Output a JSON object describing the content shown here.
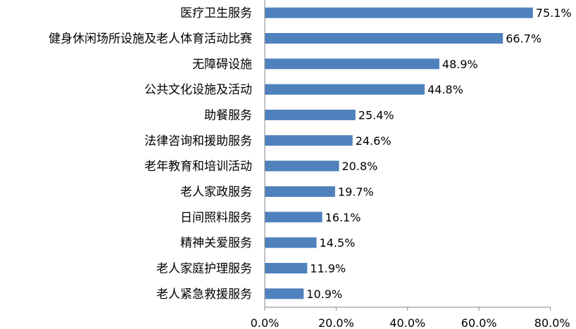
{
  "chart_data": {
    "type": "bar",
    "orientation": "horizontal",
    "categories": [
      "医疗卫生服务",
      "健身休闲场所设施及老人体育活动比赛",
      "无障碍设施",
      "公共文化设施及活动",
      "助餐服务",
      "法律咨询和援助服务",
      "老年教育和培训活动",
      "老人家政服务",
      "日间照料服务",
      "精神关爱服务",
      "老人家庭护理服务",
      "老人紧急救援服务"
    ],
    "values": [
      75.1,
      66.7,
      48.9,
      44.8,
      25.4,
      24.6,
      20.8,
      19.7,
      16.1,
      14.5,
      11.9,
      10.9
    ],
    "value_labels": [
      "75.1%",
      "66.7%",
      "48.9%",
      "44.8%",
      "25.4%",
      "24.6%",
      "20.8%",
      "19.7%",
      "16.1%",
      "14.5%",
      "11.9%",
      "10.9%"
    ],
    "xlim": [
      0,
      80
    ],
    "x_ticks": [
      0,
      20,
      40,
      60,
      80
    ],
    "x_tick_labels": [
      "0.0%",
      "20.0%",
      "40.0%",
      "60.0%",
      "80.0%"
    ],
    "title": "",
    "xlabel": "",
    "ylabel": "",
    "grid": false,
    "bar_color": "#4F81BD",
    "axis_color": "#868686"
  }
}
